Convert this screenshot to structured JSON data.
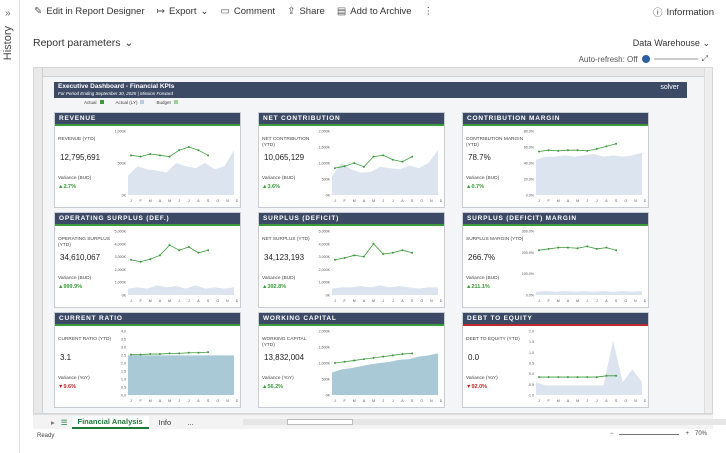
{
  "sidebar": {
    "label": "History"
  },
  "toolbar": {
    "edit": "Edit in Report Designer",
    "export": "Export",
    "comment": "Comment",
    "share": "Share",
    "archive": "Add to Archive",
    "info": "Information"
  },
  "params": {
    "label": "Report parameters",
    "source": "Data Warehouse",
    "autorefresh": "Auto-refresh: Off"
  },
  "banner": {
    "title": "Executive Dashboard - Financial KPIs",
    "subtitle": "For Period Ending September 30, 2025 | Mission Forward",
    "logo": "solver"
  },
  "legend": {
    "actual": "Actual",
    "actual_ly": "Actual (LY)",
    "budget": "Budget"
  },
  "panels": [
    {
      "title": "REVENUE",
      "metric": "REVENUE (YTD)",
      "value": "12,795,691",
      "var_label": "Variance (BUD)",
      "var": "▲2.7%",
      "status": "#3a9a3a",
      "yticks": [
        "1,000K",
        "500K",
        "0K"
      ]
    },
    {
      "title": "NET CONTRIBUTION",
      "metric": "NET CONTRIBUTION (YTD)",
      "value": "10,065,129",
      "var_label": "Variance (BUD)",
      "var": "▲3.6%",
      "status": "#3a9a3a",
      "yticks": [
        "2,000K",
        "1,500K",
        "1,000K",
        "500K",
        "0K"
      ]
    },
    {
      "title": "CONTRIBUTION MARGIN",
      "metric": "CONTRIBUTION MARGIN (YTD)",
      "value": "78.7%",
      "var_label": "Variance (BUD)",
      "var": "▲0.7%",
      "status": "#3a9a3a",
      "yticks": [
        "80.0%",
        "60.0%",
        "40.0%",
        "20.0%",
        "0.0%"
      ]
    },
    {
      "title": "OPERATING SURPLUS (DEF.)",
      "metric": "OPERATING SURPLUS (YTD)",
      "value": "34,610,067",
      "var_label": "Variance (BUD)",
      "var": "▲999.9%",
      "status": "#3a9a3a",
      "yticks": [
        "5,000K",
        "4,000K",
        "3,000K",
        "2,000K",
        "1,000K",
        "0K"
      ]
    },
    {
      "title": "SURPLUS (DEFICIT)",
      "metric": "NET SURPLUS (YTD)",
      "value": "34,123,193",
      "var_label": "Variance (BUD)",
      "var": "▲392.8%",
      "status": "#3a9a3a",
      "yticks": [
        "5,000K",
        "4,000K",
        "3,000K",
        "2,000K",
        "1,000K",
        "0K"
      ]
    },
    {
      "title": "SURPLUS (DEFICIT) MARGIN",
      "metric": "SURPLUS MARGIN (YTD)",
      "value": "266.7%",
      "var_label": "Variance (BUD)",
      "var": "▲211.1%",
      "status": "#3a9a3a",
      "yticks": [
        "300.0%",
        "200.0%",
        "100.0%",
        "0.0%"
      ]
    },
    {
      "title": "CURRENT RATIO",
      "metric": "CURRENT RATIO (YTD)",
      "value": "3.1",
      "var_label": "Variance (YoY)",
      "var": "▼9.6%",
      "status": "#3a9a3a",
      "yticks": [
        "4.0",
        "3.5",
        "3.0",
        "2.5",
        "2.0",
        "1.5",
        "1.0",
        "0.5",
        "0.0"
      ]
    },
    {
      "title": "WORKING CAPITAL",
      "metric": "WORKING CAPITAL (YTD)",
      "value": "13,832,004",
      "var_label": "Variance (YoY)",
      "var": "▲56.2%",
      "status": "#3a9a3a",
      "yticks": [
        "2,000K",
        "1,500K",
        "1,000K",
        "500K",
        "0K"
      ]
    },
    {
      "title": "DEBT TO EQUITY",
      "metric": "DEBT TO EQUITY (YTD)",
      "value": "0.0",
      "var_label": "Variance (YoY)",
      "var": "▼92.0%",
      "status": "#c0282f",
      "yticks": [
        "2.0",
        "1.5",
        "1.0",
        "0.5",
        "0.0",
        "-0.5",
        "-1.0"
      ]
    }
  ],
  "months": [
    "J",
    "F",
    "M",
    "A",
    "M",
    "J",
    "J",
    "A",
    "S",
    "O",
    "N",
    "D"
  ],
  "sheet_tabs": {
    "active": "Financial Analysis",
    "other": "Info",
    "more": "..."
  },
  "status": {
    "ready": "Ready",
    "zoom": "70%"
  }
}
